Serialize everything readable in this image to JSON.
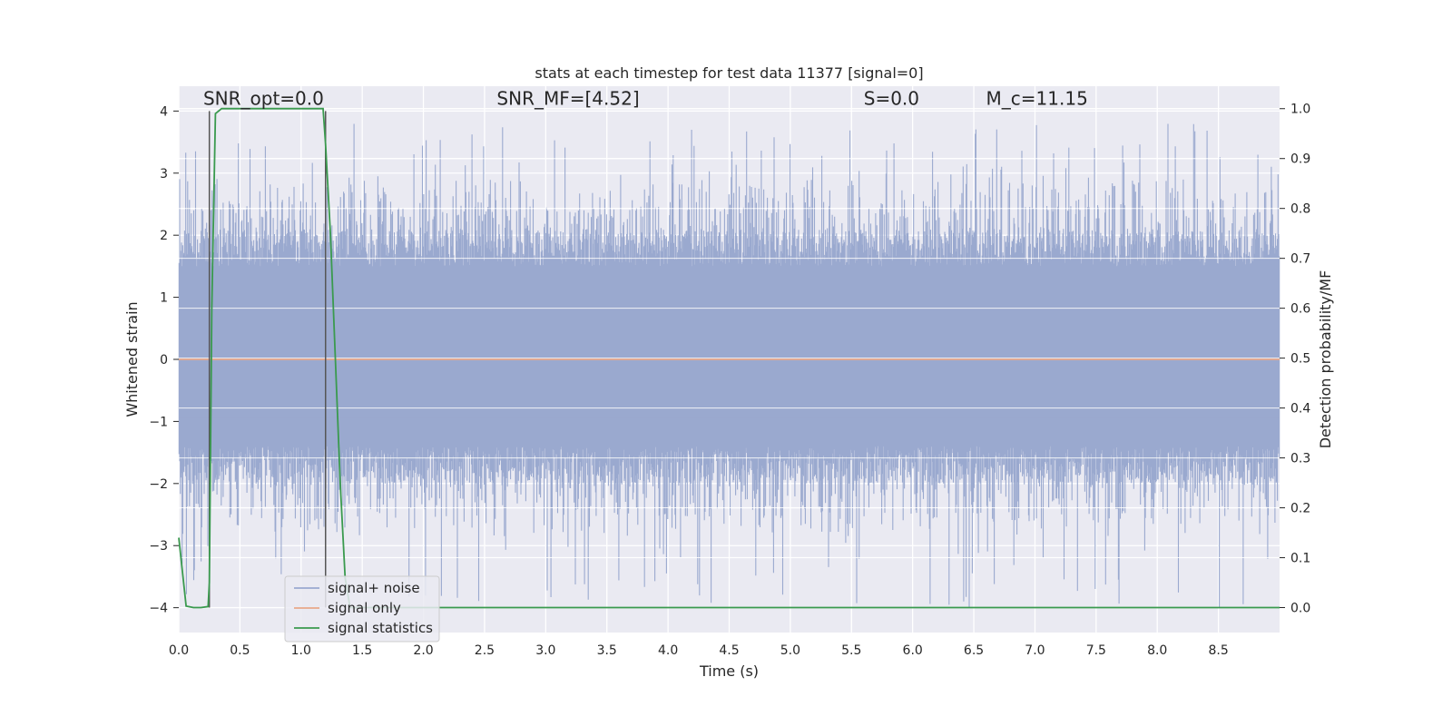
{
  "chart_data": {
    "type": "line",
    "title": "stats at each timestep for test data 11377 [signal=0]",
    "xlabel": "Time (s)",
    "ylabel": "Whitened strain",
    "ylabel_right": "Detection probability/MF",
    "xlim": [
      0,
      9
    ],
    "ylim": [
      -4.4,
      4.4
    ],
    "ylim_right": [
      -0.05,
      1.045
    ],
    "x_ticks": [
      0.0,
      0.5,
      1.0,
      1.5,
      2.0,
      2.5,
      3.0,
      3.5,
      4.0,
      4.5,
      5.0,
      5.5,
      6.0,
      6.5,
      7.0,
      7.5,
      8.0,
      8.5
    ],
    "x_tick_labels": [
      "0.0",
      "0.5",
      "1.0",
      "1.5",
      "2.0",
      "2.5",
      "3.0",
      "3.5",
      "4.0",
      "4.5",
      "5.0",
      "5.5",
      "6.0",
      "6.5",
      "7.0",
      "7.5",
      "8.0",
      "8.5"
    ],
    "y_ticks": [
      -4,
      -3,
      -2,
      -1,
      0,
      1,
      2,
      3,
      4
    ],
    "y_tick_labels": [
      "−4",
      "−3",
      "−2",
      "−1",
      "0",
      "1",
      "2",
      "3",
      "4"
    ],
    "y_ticks_right": [
      0.0,
      0.1,
      0.2,
      0.3,
      0.4,
      0.5,
      0.6,
      0.7,
      0.8,
      0.9,
      1.0
    ],
    "y_tick_labels_right": [
      "0.0",
      "0.1",
      "0.2",
      "0.3",
      "0.4",
      "0.5",
      "0.6",
      "0.7",
      "0.8",
      "0.9",
      "1.0"
    ],
    "grid": true,
    "legend_position": "lower-left",
    "annotations": [
      {
        "text": "SNR_opt=0.0",
        "x": 0.2,
        "y": 4.1
      },
      {
        "text": "SNR_MF=[4.52]",
        "x": 2.6,
        "y": 4.1
      },
      {
        "text": "S=0.0",
        "x": 5.6,
        "y": 4.1
      },
      {
        "text": "M_c=11.15",
        "x": 6.6,
        "y": 4.1
      }
    ],
    "vertical_lines": [
      0.25,
      1.2
    ],
    "series": [
      {
        "name": "signal+ noise",
        "color": "#9aa9cf",
        "kind": "noise",
        "duration": 9,
        "sample_rate": 4096,
        "upper_typical": 2.0,
        "upper_peak_max": 3.8,
        "lower_typical": -2.0,
        "lower_peak_min": -4.0
      },
      {
        "name": "signal only",
        "color": "#e8a88a",
        "x": [
          0,
          9
        ],
        "y": [
          0,
          0
        ]
      },
      {
        "name": "signal statistics",
        "color": "#3a9a4e",
        "axis": "right",
        "x": [
          0.0,
          0.06,
          0.12,
          0.18,
          0.24,
          0.25,
          0.27,
          0.3,
          0.35,
          0.5,
          0.8,
          1.0,
          1.18,
          1.2,
          1.24,
          1.28,
          1.32,
          1.36,
          1.4,
          2.0,
          5.0,
          9.0
        ],
        "y": [
          0.14,
          0.003,
          0.0,
          0.0,
          0.002,
          0.05,
          0.6,
          0.99,
          1.0,
          1.0,
          1.0,
          1.0,
          1.0,
          0.93,
          0.75,
          0.5,
          0.25,
          0.06,
          0.0,
          0.0,
          0.0,
          0.0
        ]
      }
    ]
  }
}
